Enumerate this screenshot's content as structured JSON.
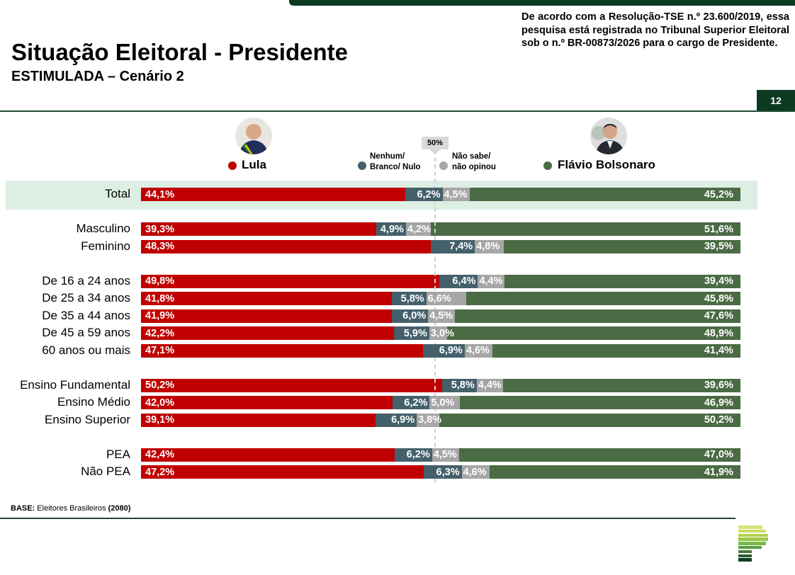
{
  "header": {
    "title": "Situação Eleitoral - Presidente",
    "subtitle": "ESTIMULADA – Cenário 2",
    "notice": "De acordo com a Resolução-TSE n.º 23.600/2019, essa pesquisa está registrada no Tribunal Superior Eleitoral sob o n.º BR-00873/2026 para o cargo de Presidente.",
    "page_number": "12"
  },
  "legend": {
    "lula": {
      "label": "Lula",
      "color": "#c00000"
    },
    "nulo": {
      "label_line1": "Nenhum/",
      "label_line2": "Branco/ Nulo",
      "color": "#44606b"
    },
    "ns": {
      "label_line1": "Não sabe/",
      "label_line2": "não opinou",
      "color": "#a6a6a6"
    },
    "flavio": {
      "label": "Flávio Bolsonaro",
      "color": "#4a6b44"
    },
    "fifty_marker": "50%"
  },
  "footer": {
    "base_label": "BASE:",
    "base_text": "Eleitores Brasileiros",
    "base_n": "(2080)"
  },
  "chart_data": {
    "type": "bar",
    "orientation": "horizontal-stacked-100",
    "title": "Situação Eleitoral - Presidente",
    "subtitle": "ESTIMULADA – Cenário 2",
    "reference_line": 50,
    "series_names": [
      "Lula",
      "Nenhum/ Branco/ Nulo",
      "Não sabe/ não opinou",
      "Flávio Bolsonaro"
    ],
    "rows": [
      {
        "label": "Total",
        "highlight": true,
        "group": 0,
        "values": [
          44.1,
          6.2,
          4.5,
          45.2
        ],
        "labels": [
          "44,1%",
          "6,2%",
          "4,5%",
          "45,2%"
        ]
      },
      {
        "label": "Masculino",
        "group": 1,
        "values": [
          39.3,
          4.9,
          4.2,
          51.6
        ],
        "labels": [
          "39,3%",
          "4,9%",
          "4,2%",
          "51,6%"
        ]
      },
      {
        "label": "Feminino",
        "group": 1,
        "values": [
          48.3,
          7.4,
          4.8,
          39.5
        ],
        "labels": [
          "48,3%",
          "7,4%",
          "4,8%",
          "39,5%"
        ]
      },
      {
        "label": "De 16 a 24 anos",
        "group": 2,
        "values": [
          49.8,
          6.4,
          4.4,
          39.4
        ],
        "labels": [
          "49,8%",
          "6,4%",
          "4,4%",
          "39,4%"
        ]
      },
      {
        "label": "De 25 a 34 anos",
        "group": 2,
        "values": [
          41.8,
          5.8,
          6.6,
          45.8
        ],
        "labels": [
          "41,8%",
          "5,8%",
          "6,6%",
          "45,8%"
        ]
      },
      {
        "label": "De 35 a 44 anos",
        "group": 2,
        "values": [
          41.9,
          6.0,
          4.5,
          47.6
        ],
        "labels": [
          "41,9%",
          "6,0%",
          "4,5%",
          "47,6%"
        ]
      },
      {
        "label": "De 45 a 59 anos",
        "group": 2,
        "values": [
          42.2,
          5.9,
          3.0,
          48.9
        ],
        "labels": [
          "42,2%",
          "5,9%",
          "3,0%",
          "48,9%"
        ]
      },
      {
        "label": "60 anos ou mais",
        "group": 2,
        "values": [
          47.1,
          6.9,
          4.6,
          41.4
        ],
        "labels": [
          "47,1%",
          "6,9%",
          "4,6%",
          "41,4%"
        ]
      },
      {
        "label": "Ensino Fundamental",
        "group": 3,
        "values": [
          50.2,
          5.8,
          4.4,
          39.6
        ],
        "labels": [
          "50,2%",
          "5,8%",
          "4,4%",
          "39,6%"
        ]
      },
      {
        "label": "Ensino Médio",
        "group": 3,
        "values": [
          42.0,
          6.2,
          5.0,
          46.9
        ],
        "labels": [
          "42,0%",
          "6,2%",
          "5,0%",
          "46,9%"
        ]
      },
      {
        "label": "Ensino Superior",
        "group": 3,
        "values": [
          39.1,
          6.9,
          3.8,
          50.2
        ],
        "labels": [
          "39,1%",
          "6,9%",
          "3,8%",
          "50,2%"
        ]
      },
      {
        "label": "PEA",
        "group": 4,
        "values": [
          42.4,
          6.2,
          4.5,
          47.0
        ],
        "labels": [
          "42,4%",
          "6,2%",
          "4,5%",
          "47,0%"
        ]
      },
      {
        "label": "Não PEA",
        "group": 4,
        "values": [
          47.2,
          6.3,
          4.6,
          41.9
        ],
        "labels": [
          "47,2%",
          "6,3%",
          "4,6%",
          "41,9%"
        ]
      }
    ]
  }
}
